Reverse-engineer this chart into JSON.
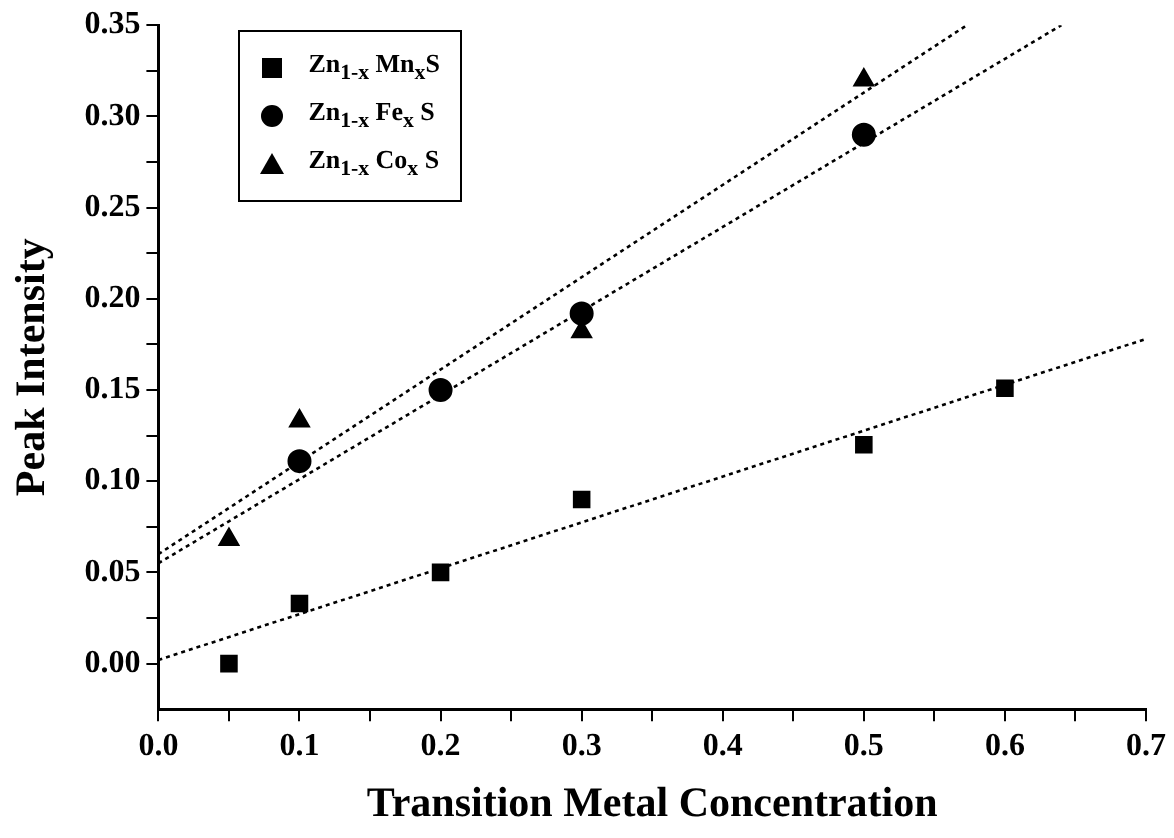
{
  "chart_data": {
    "type": "scatter",
    "xlabel": "Transition Metal Concentration",
    "ylabel": "Peak Intensity",
    "xlim": [
      0,
      0.7
    ],
    "ylim": [
      -0.025,
      0.35
    ],
    "xticks": [
      {
        "value": 0,
        "label": "0.0"
      },
      {
        "value": 0.05,
        "label": null
      },
      {
        "value": 0.1,
        "label": "0.1"
      },
      {
        "value": 0.15,
        "label": null
      },
      {
        "value": 0.2,
        "label": "0.2"
      },
      {
        "value": 0.25,
        "label": null
      },
      {
        "value": 0.3,
        "label": "0.3"
      },
      {
        "value": 0.35,
        "label": null
      },
      {
        "value": 0.4,
        "label": "0.4"
      },
      {
        "value": 0.45,
        "label": null
      },
      {
        "value": 0.5,
        "label": "0.5"
      },
      {
        "value": 0.55,
        "label": null
      },
      {
        "value": 0.6,
        "label": "0.6"
      },
      {
        "value": 0.65,
        "label": null
      },
      {
        "value": 0.7,
        "label": "0.7"
      }
    ],
    "yticks": [
      {
        "value": 0,
        "label": "0.00"
      },
      {
        "value": 0.025,
        "label": null
      },
      {
        "value": 0.05,
        "label": "0.05"
      },
      {
        "value": 0.075,
        "label": null
      },
      {
        "value": 0.1,
        "label": "0.10"
      },
      {
        "value": 0.125,
        "label": null
      },
      {
        "value": 0.15,
        "label": "0.15"
      },
      {
        "value": 0.175,
        "label": null
      },
      {
        "value": 0.2,
        "label": "0.20"
      },
      {
        "value": 0.225,
        "label": null
      },
      {
        "value": 0.25,
        "label": "0.25"
      },
      {
        "value": 0.275,
        "label": null
      },
      {
        "value": 0.3,
        "label": "0.30"
      },
      {
        "value": 0.325,
        "label": null
      },
      {
        "value": 0.35,
        "label": "0.35"
      }
    ],
    "grid": false,
    "legend": "top left",
    "series": [
      {
        "name": "Zn$_{1-x}$ Mn$_{x}$S",
        "type": "scatter",
        "marker": "square",
        "color": "#000000",
        "x": [
          0.05,
          0.1,
          0.2,
          0.3,
          0.5,
          0.6
        ],
        "values": [
          0.0,
          0.033,
          0.05,
          0.09,
          0.12,
          0.151
        ]
      },
      {
        "name": "Zn$_{1-x}$ Fe$_{x}$ S",
        "type": "scatter",
        "marker": "circle",
        "color": "#000000",
        "x": [
          0.1,
          0.2,
          0.3,
          0.5
        ],
        "values": [
          0.111,
          0.15,
          0.192,
          0.29
        ]
      },
      {
        "name": "Zn$_{1-x}$ Co$_{x}$ S",
        "type": "scatter",
        "marker": "triangle",
        "color": "#000000",
        "x": [
          0.05,
          0.1,
          0.3,
          0.5
        ],
        "values": [
          0.068,
          0.133,
          0.182,
          0.32
        ]
      },
      {
        "type": "line",
        "line_style": "dotted",
        "marker": "none",
        "color": "#000000",
        "x": [
          0,
          0.7
        ],
        "values": [
          0.002,
          0.178
        ]
      },
      {
        "type": "line",
        "line_style": "dotted",
        "marker": "none",
        "color": "#000000",
        "x": [
          0,
          0.64
        ],
        "values": [
          0.055,
          0.35
        ]
      },
      {
        "type": "line",
        "line_style": "dotted",
        "marker": "none",
        "color": "#000000",
        "x": [
          0,
          0.573
        ],
        "values": [
          0.06,
          0.35
        ]
      }
    ]
  }
}
